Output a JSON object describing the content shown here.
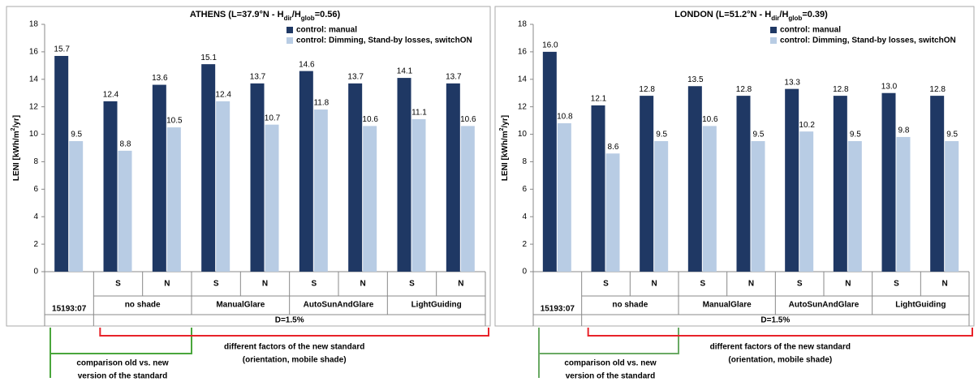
{
  "chart_data": [
    {
      "type": "bar",
      "title": [
        "ATHENS (L=37.9°N - H",
        "dir",
        "/H",
        "glob",
        "=0.56)"
      ],
      "ylabel": [
        "LENI [kWh/m",
        "2",
        "/yr]"
      ],
      "categories": [
        null,
        "S",
        "N",
        "S",
        "N",
        "S",
        "N",
        "S",
        "N"
      ],
      "groups": [
        "15193:07",
        "no shade",
        "ManualGlare",
        "AutoSunAndGlare",
        "LightGuiding"
      ],
      "outer_label": "D=1.5%",
      "series": [
        {
          "name": "control: manual",
          "color": "#1f3864",
          "values": [
            15.7,
            12.4,
            13.6,
            15.1,
            13.7,
            14.6,
            13.7,
            14.1,
            13.7
          ],
          "value_labels": [
            "15.7",
            "12.4",
            "13.6",
            "15.1",
            "13.7",
            "14.6",
            "13.7",
            "14.1",
            "13.7"
          ]
        },
        {
          "name": "control: Dimming, Stand-by losses, switchON",
          "color": "#b8cce4",
          "values": [
            9.5,
            8.8,
            10.5,
            12.4,
            10.7,
            11.8,
            10.6,
            11.1,
            10.6
          ],
          "value_labels": [
            "9.5",
            "8.8",
            "10.5",
            "12.4",
            "10.7",
            "11.8",
            "10.6",
            "11.1",
            "10.6"
          ]
        }
      ],
      "ylim": [
        0,
        18
      ],
      "yticks": [
        0,
        2,
        4,
        6,
        8,
        10,
        12,
        14,
        16,
        18
      ],
      "annotations": [
        {
          "text": [
            "comparison old vs. new",
            "version of the standard"
          ],
          "color": "#4aa63c"
        },
        {
          "text": [
            "different factors of the new standard",
            "(orientation, mobile shade)"
          ],
          "color": "#e8232a"
        }
      ]
    },
    {
      "type": "bar",
      "title": [
        "LONDON (L=51.2°N - H",
        "dir",
        "/H",
        "glob",
        "=0.39)"
      ],
      "ylabel": [
        "LENI [kWh/m",
        "2",
        "/yr]"
      ],
      "categories": [
        null,
        "S",
        "N",
        "S",
        "N",
        "S",
        "N",
        "S",
        "N"
      ],
      "groups": [
        "15193:07",
        "no shade",
        "ManualGlare",
        "AutoSunAndGlare",
        "LightGuiding"
      ],
      "outer_label": "D=1.5%",
      "series": [
        {
          "name": "control: manual",
          "color": "#1f3864",
          "values": [
            16.0,
            12.1,
            12.8,
            13.5,
            12.8,
            13.3,
            12.8,
            13.0,
            12.8
          ],
          "value_labels": [
            "16.0",
            "12.1",
            "12.8",
            "13.5",
            "12.8",
            "13.3",
            "12.8",
            "13.0",
            "12.8"
          ]
        },
        {
          "name": "control: Dimming, Stand-by losses, switchON",
          "color": "#b8cce4",
          "values": [
            10.8,
            8.6,
            9.5,
            10.6,
            9.5,
            10.2,
            9.5,
            9.8,
            9.5
          ],
          "value_labels": [
            "10.8",
            "8.6",
            "9.5",
            "10.6",
            "9.5",
            "10.2",
            "9.5",
            "9.8",
            "9.5"
          ]
        }
      ],
      "ylim": [
        0,
        18
      ],
      "yticks": [
        0,
        2,
        4,
        6,
        8,
        10,
        12,
        14,
        16,
        18
      ],
      "annotations": [
        {
          "text": [
            "comparison old vs. new",
            "version of the standard"
          ],
          "color": "#6aaa64"
        },
        {
          "text": [
            "different factors of the new standard",
            "(orientation, mobile shade)"
          ],
          "color": "#e8232a"
        }
      ]
    }
  ]
}
